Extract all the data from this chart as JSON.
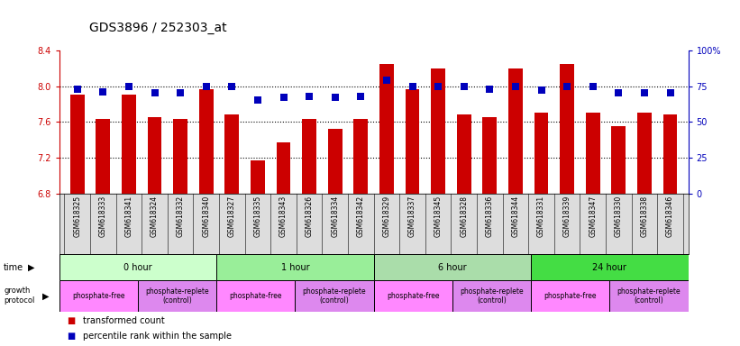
{
  "title": "GDS3896 / 252303_at",
  "samples": [
    "GSM618325",
    "GSM618333",
    "GSM618341",
    "GSM618324",
    "GSM618332",
    "GSM618340",
    "GSM618327",
    "GSM618335",
    "GSM618343",
    "GSM618326",
    "GSM618334",
    "GSM618342",
    "GSM618329",
    "GSM618337",
    "GSM618345",
    "GSM618328",
    "GSM618336",
    "GSM618344",
    "GSM618331",
    "GSM618339",
    "GSM618347",
    "GSM618330",
    "GSM618338",
    "GSM618346"
  ],
  "transformed_count": [
    7.9,
    7.63,
    7.9,
    7.65,
    7.63,
    7.97,
    7.68,
    7.17,
    7.37,
    7.63,
    7.52,
    7.63,
    8.25,
    7.97,
    8.2,
    7.68,
    7.65,
    8.2,
    7.7,
    8.25,
    7.7,
    7.55,
    7.7,
    7.68
  ],
  "percentile_rank": [
    73,
    71,
    75,
    70,
    70,
    75,
    75,
    65,
    67,
    68,
    67,
    68,
    79,
    75,
    75,
    75,
    73,
    75,
    72,
    75,
    75,
    70,
    70,
    70
  ],
  "ylim_left": [
    6.8,
    8.4
  ],
  "ylim_right": [
    0,
    100
  ],
  "yticks_left": [
    6.8,
    7.2,
    7.6,
    8.0,
    8.4
  ],
  "yticks_right": [
    0,
    25,
    50,
    75,
    100
  ],
  "ytick_labels_right": [
    "0",
    "25",
    "50",
    "75",
    "100%"
  ],
  "hlines": [
    7.2,
    7.6,
    8.0
  ],
  "time_groups": [
    {
      "label": "0 hour",
      "start": 0,
      "end": 6,
      "color": "#CCFFCC"
    },
    {
      "label": "1 hour",
      "start": 6,
      "end": 12,
      "color": "#99EE99"
    },
    {
      "label": "6 hour",
      "start": 12,
      "end": 18,
      "color": "#AADDAA"
    },
    {
      "label": "24 hour",
      "start": 18,
      "end": 24,
      "color": "#44DD44"
    }
  ],
  "protocol_groups": [
    {
      "label": "phosphate-free",
      "start": 0,
      "end": 3,
      "color": "#FF88FF"
    },
    {
      "label": "phosphate-replete\n(control)",
      "start": 3,
      "end": 6,
      "color": "#DD88EE"
    },
    {
      "label": "phosphate-free",
      "start": 6,
      "end": 9,
      "color": "#FF88FF"
    },
    {
      "label": "phosphate-replete\n(control)",
      "start": 9,
      "end": 12,
      "color": "#DD88EE"
    },
    {
      "label": "phosphate-free",
      "start": 12,
      "end": 15,
      "color": "#FF88FF"
    },
    {
      "label": "phosphate-replete\n(control)",
      "start": 15,
      "end": 18,
      "color": "#DD88EE"
    },
    {
      "label": "phosphate-free",
      "start": 18,
      "end": 21,
      "color": "#FF88FF"
    },
    {
      "label": "phosphate-replete\n(control)",
      "start": 21,
      "end": 24,
      "color": "#DD88EE"
    }
  ],
  "sample_bg_color": "#DDDDDD",
  "bar_color": "#CC0000",
  "dot_color": "#0000BB",
  "bar_width": 0.55,
  "dot_size": 28,
  "tick_label_color_left": "#CC0000",
  "tick_label_color_right": "#0000BB",
  "title_fontsize": 10,
  "tick_fontsize": 7,
  "sample_fontsize": 5.5,
  "row_fontsize": 7,
  "legend_fontsize": 7
}
